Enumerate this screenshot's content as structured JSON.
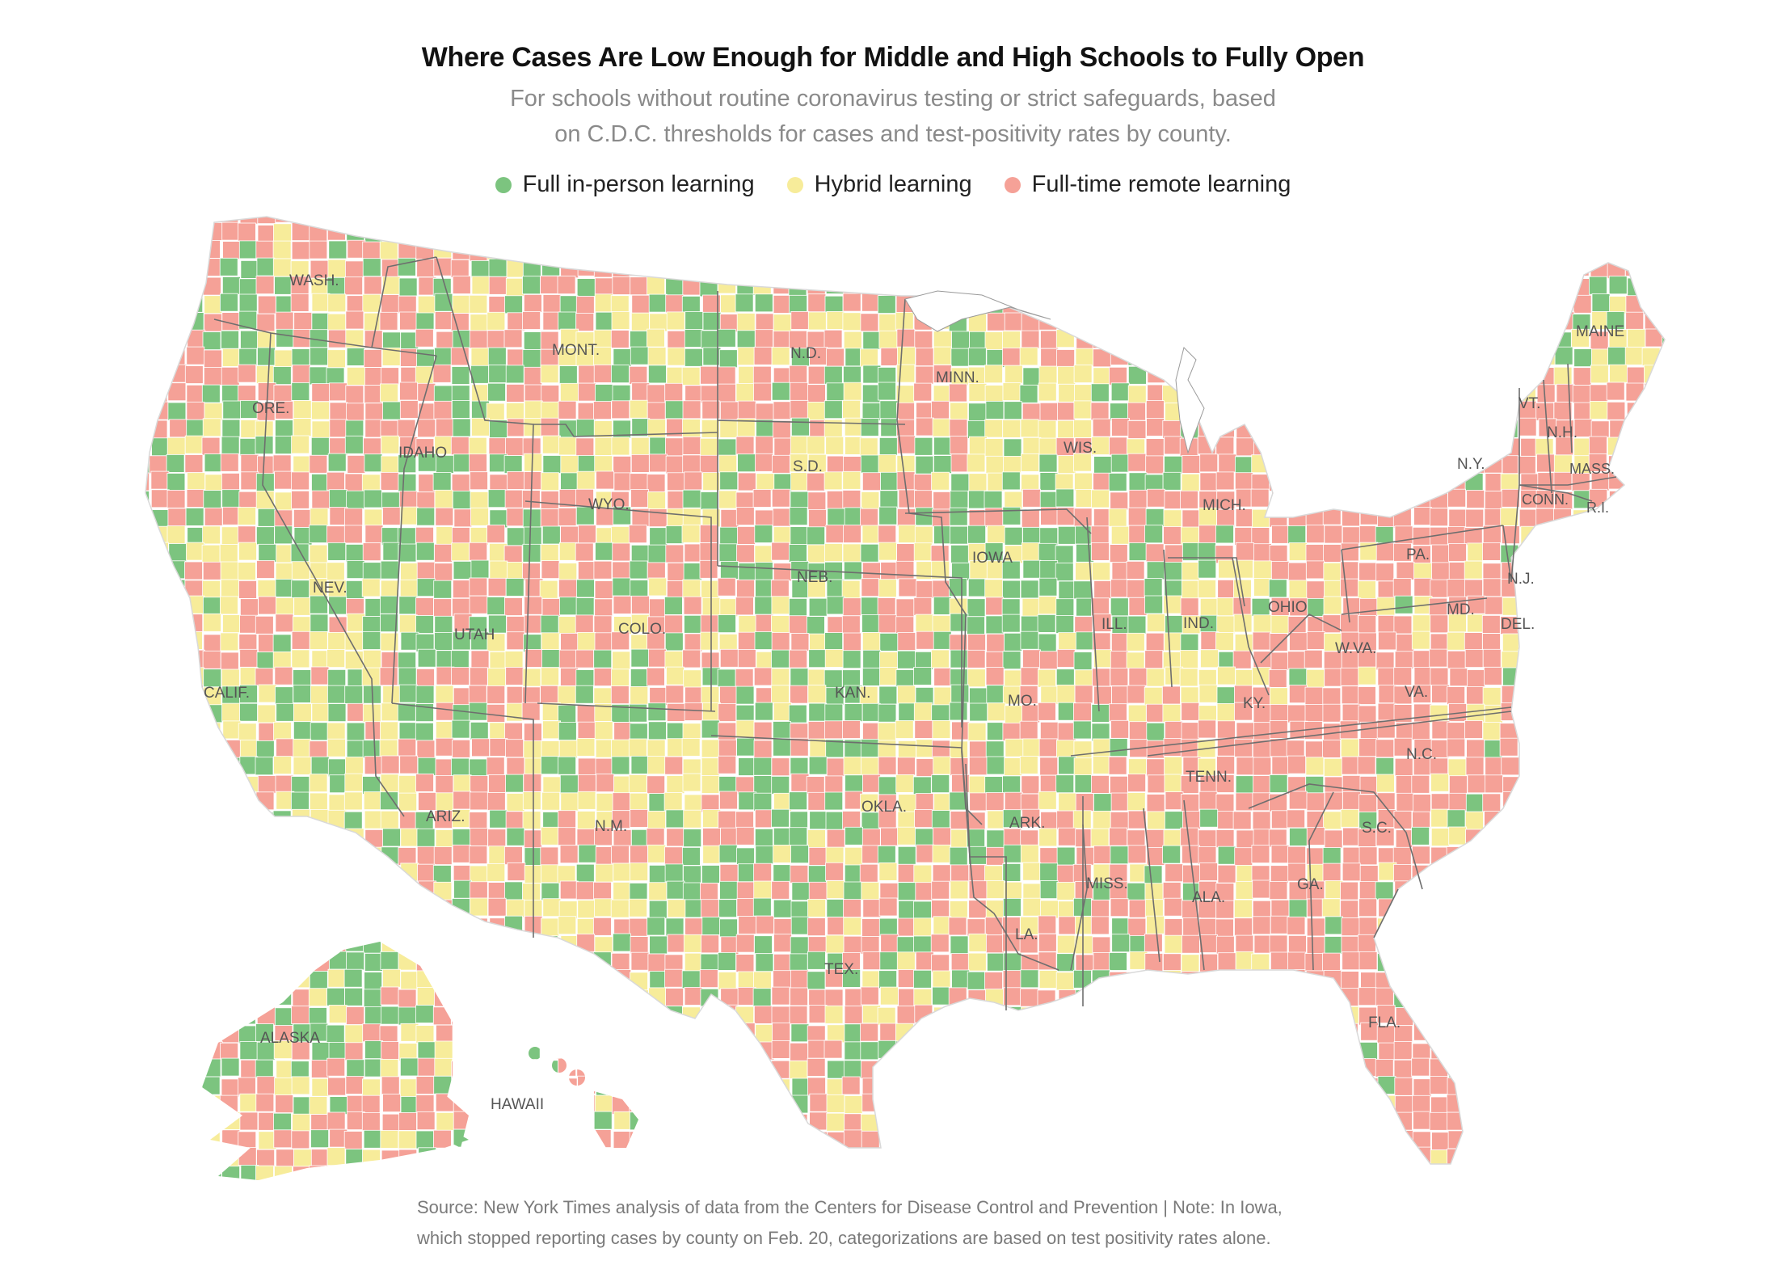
{
  "header": {
    "title": "Where Cases Are Low Enough for Middle and High Schools to Fully Open",
    "subtitle_line1": "For schools without routine coronavirus testing or strict safeguards, based",
    "subtitle_line2": "on C.D.C. thresholds for cases and test-positivity rates by county."
  },
  "legend": [
    {
      "label": "Full in-person learning",
      "color": "#7cc47f"
    },
    {
      "label": "Hybrid learning",
      "color": "#f7ec9a"
    },
    {
      "label": "Full-time remote learning",
      "color": "#f5a197"
    }
  ],
  "colors": {
    "in_person": "#7cc47f",
    "hybrid": "#f7ec9a",
    "remote": "#f5a197",
    "county_border": "#ffffff",
    "state_border": "#6e6e6e"
  },
  "map": {
    "state_labels": {
      "wash": "WASH.",
      "ore": "ORE.",
      "calif": "CALIF.",
      "idaho": "IDAHO",
      "nev": "NEV.",
      "utah": "UTAH",
      "ariz": "ARIZ.",
      "mont": "MONT.",
      "wyo": "WYO.",
      "colo": "COLO.",
      "nm": "N.M.",
      "nd": "N.D.",
      "sd": "S.D.",
      "neb": "NEB.",
      "kan": "KAN.",
      "okla": "OKLA.",
      "tex": "TEX.",
      "minn": "MINN.",
      "iowa": "IOWA",
      "mo": "MO.",
      "ark": "ARK.",
      "la": "LA.",
      "wis": "WIS.",
      "ill": "ILL.",
      "mich": "MICH.",
      "ind": "IND.",
      "ohio": "OHIO",
      "ky": "KY.",
      "tenn": "TENN.",
      "miss": "MISS.",
      "ala": "ALA.",
      "ga": "GA.",
      "fla": "FLA.",
      "sc": "S.C.",
      "nc": "N.C.",
      "va": "VA.",
      "wva": "W.VA.",
      "pa": "PA.",
      "ny": "N.Y.",
      "vt": "VT.",
      "nh": "N.H.",
      "maine": "MAINE",
      "mass": "MASS.",
      "conn": "CONN.",
      "ri": "R.I.",
      "nj": "N.J.",
      "del": "DEL.",
      "md": "MD.",
      "alaska": "ALASKA",
      "hawaii": "HAWAII"
    }
  },
  "footer": {
    "source_line1": "Source: New York Times analysis of data from the Centers for Disease Control and Prevention | Note: In Iowa,",
    "source_line2": "which stopped reporting cases by county on Feb. 20, categorizations are based on test positivity rates alone."
  }
}
